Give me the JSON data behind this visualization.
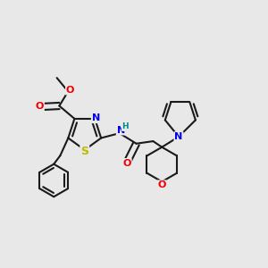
{
  "bg_color": "#e8e8e8",
  "bond_color": "#1a1a1a",
  "bond_lw": 1.5,
  "dbo": 0.013,
  "atom_colors": {
    "N": "#0000ee",
    "O": "#ee0000",
    "S": "#bbbb00",
    "H_color": "#008888",
    "C": "#1a1a1a"
  },
  "fs": 7.5,
  "s": 0.06
}
